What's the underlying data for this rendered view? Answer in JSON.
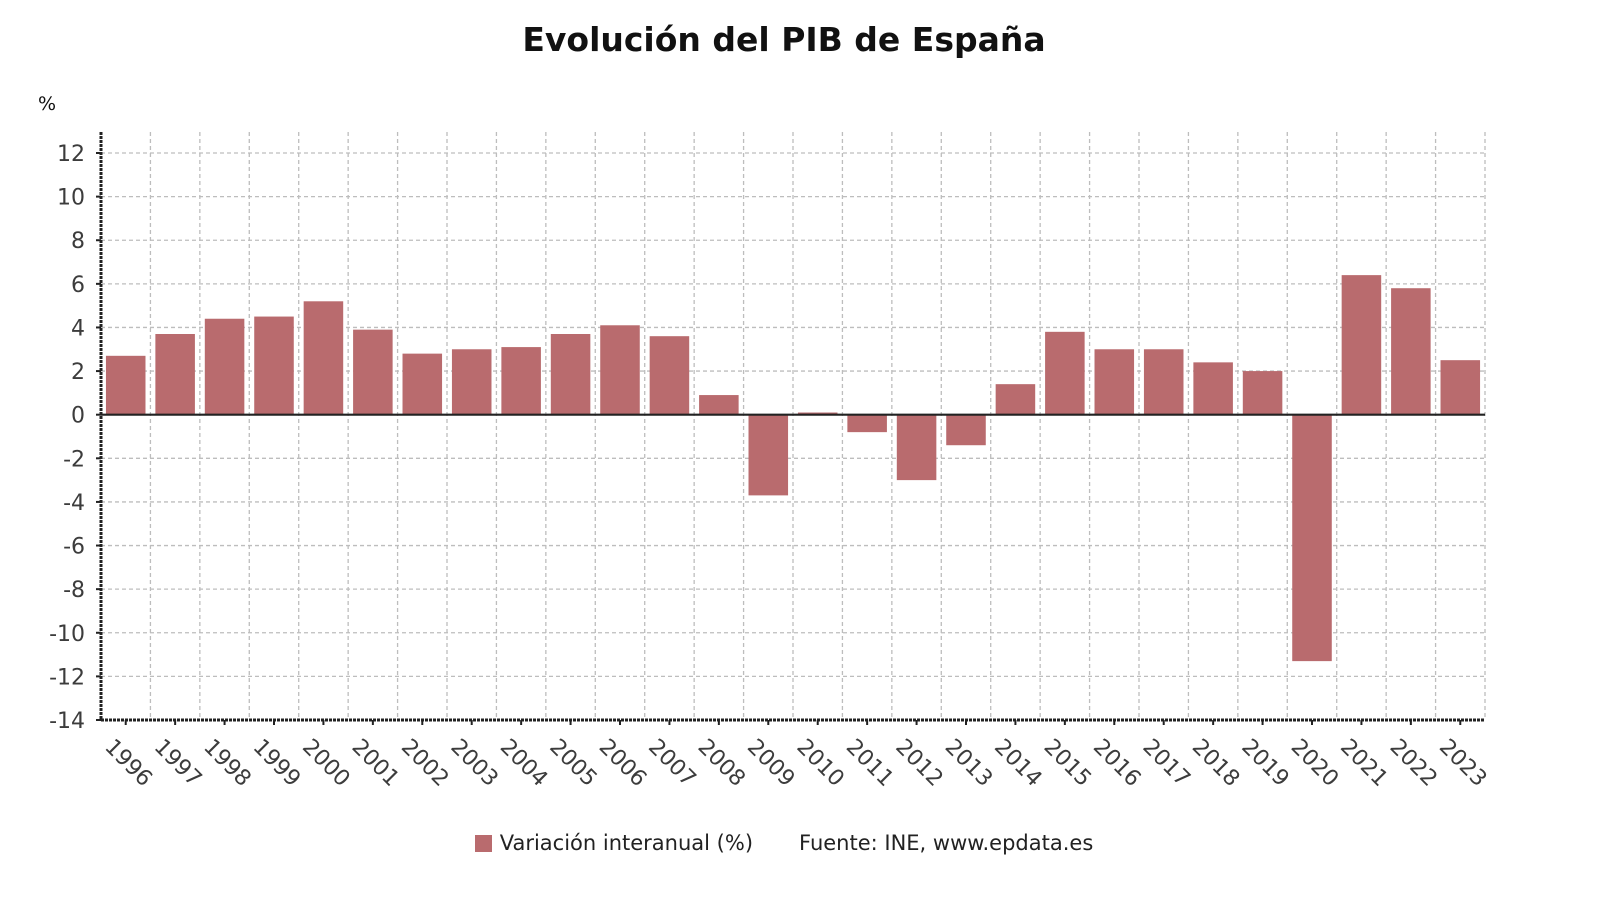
{
  "chart_data": {
    "type": "bar",
    "title": "Evolución del PIB de España",
    "xlabel": "",
    "ylabel": "%",
    "ylim": [
      -14,
      13
    ],
    "yticks": [
      12,
      10,
      8,
      6,
      4,
      2,
      0,
      -2,
      -4,
      -6,
      -8,
      -10,
      -12,
      -14
    ],
    "grid": true,
    "legend_position": "bottom-center",
    "categories": [
      "1996",
      "1997",
      "1998",
      "1999",
      "2000",
      "2001",
      "2002",
      "2003",
      "2004",
      "2005",
      "2006",
      "2007",
      "2008",
      "2009",
      "2010",
      "2011",
      "2012",
      "2013",
      "2014",
      "2015",
      "2016",
      "2017",
      "2018",
      "2019",
      "2020",
      "2021",
      "2022",
      "2023"
    ],
    "series": [
      {
        "name": "Variación interanual (%)",
        "color": "#b96b6e",
        "values": [
          2.7,
          3.7,
          4.4,
          4.5,
          5.2,
          3.9,
          2.8,
          3.0,
          3.1,
          3.7,
          4.1,
          3.6,
          0.9,
          -3.7,
          0.1,
          -0.8,
          -3.0,
          -1.4,
          1.4,
          3.8,
          3.0,
          3.0,
          2.4,
          2.0,
          -11.3,
          6.4,
          5.8,
          2.5
        ]
      }
    ],
    "source": "Fuente: INE, www.epdata.es"
  },
  "colors": {
    "bar": "#b96b6e",
    "grid": "#bdbdbd",
    "axis": "#222222",
    "tick_text": "#3c3c3c"
  }
}
